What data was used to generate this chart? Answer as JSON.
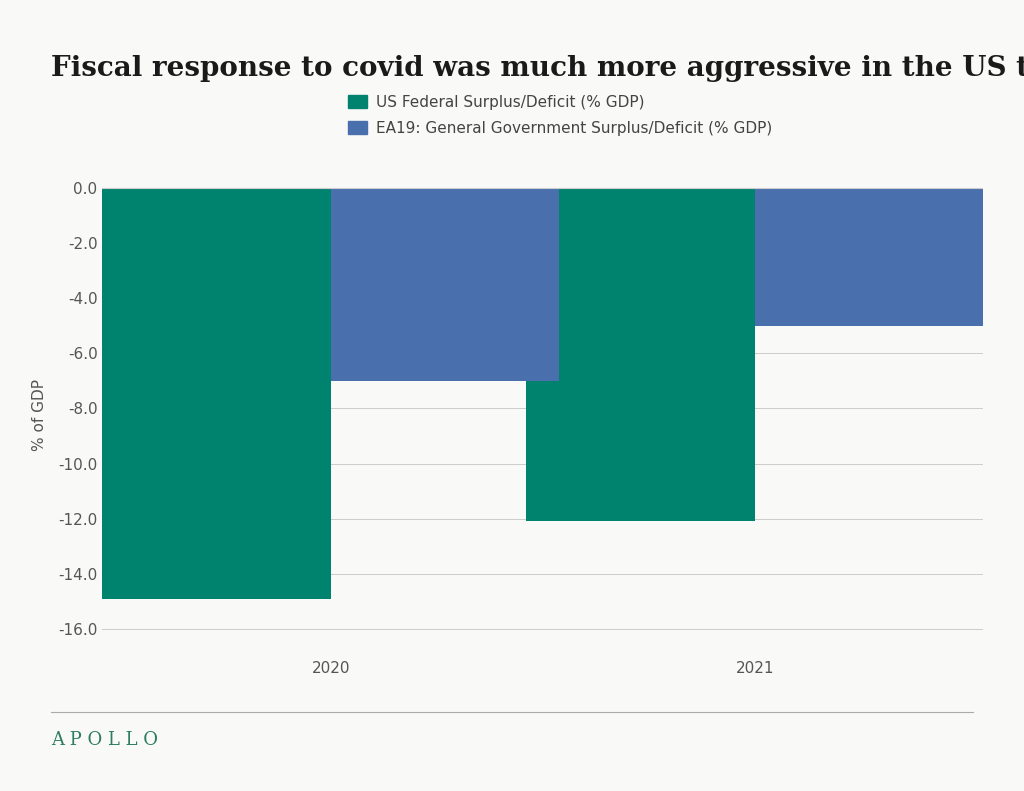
{
  "title": "Fiscal response to covid was much more aggressive in the US than in Europe",
  "ylabel": "% of GDP",
  "background_color": "#f9f9f7",
  "bar_width": 0.35,
  "years": [
    "2020",
    "2021"
  ],
  "us_values": [
    -14.9,
    -12.1
  ],
  "eu_values": [
    -7.0,
    -5.0
  ],
  "us_color": "#00836e",
  "eu_color": "#4a6fad",
  "us_label": "US Federal Surplus/Deficit (% GDP)",
  "eu_label": "EA19: General Government Surplus/Deficit (% GDP)",
  "ylim": [
    -17,
    0.5
  ],
  "yticks": [
    0.0,
    -2.0,
    -4.0,
    -6.0,
    -8.0,
    -10.0,
    -12.0,
    -14.0,
    -16.0
  ],
  "title_fontsize": 20,
  "axis_label_fontsize": 11,
  "tick_fontsize": 11,
  "legend_fontsize": 11,
  "apollo_color": "#2e7d5e",
  "apollo_text": "A P O L L O"
}
